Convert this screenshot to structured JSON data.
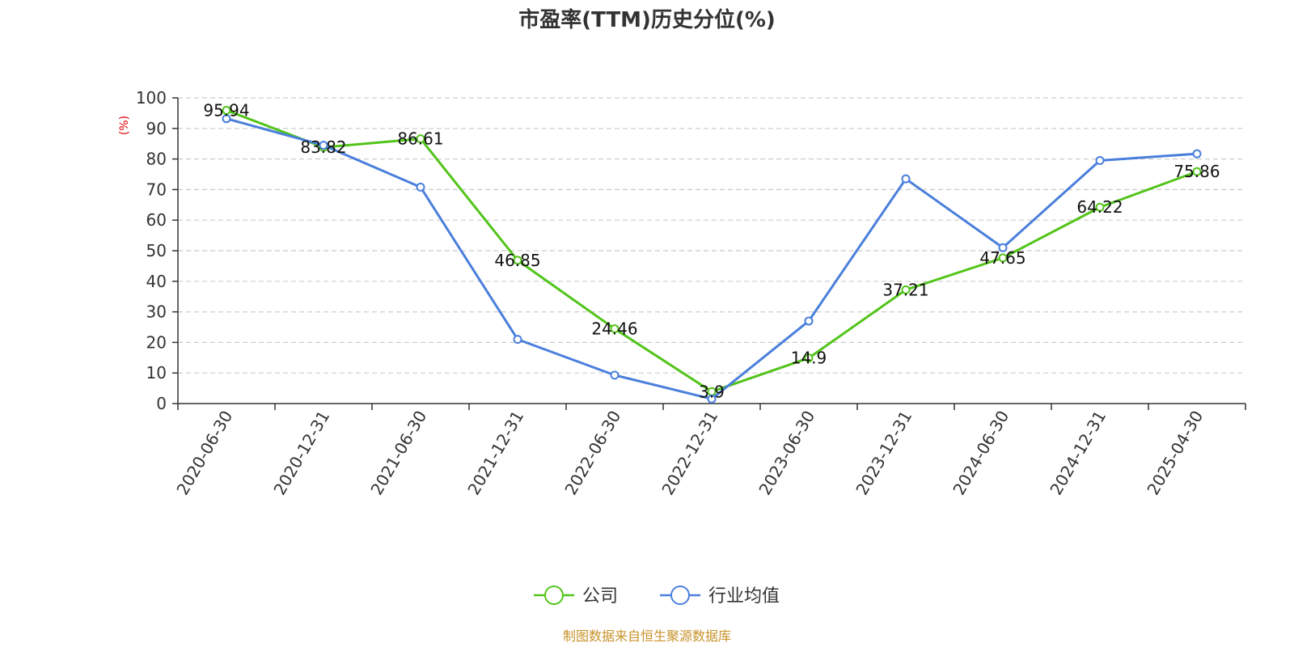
{
  "chart_data": {
    "type": "line",
    "title": "市盈率(TTM)历史分位(%)",
    "ylabel": "(%)",
    "ylim": [
      0,
      100
    ],
    "yticks": [
      "0",
      "10",
      "20",
      "30",
      "40",
      "50",
      "60",
      "70",
      "80",
      "90",
      "100"
    ],
    "categories": [
      "2020-06-30",
      "2020-12-31",
      "2021-06-30",
      "2021-12-31",
      "2022-06-30",
      "2022-12-31",
      "2023-06-30",
      "2023-12-31",
      "2024-06-30",
      "2024-12-31",
      "2025-04-30"
    ],
    "series": [
      {
        "name": "公司",
        "color": "#52c41a",
        "values": [
          95.94,
          83.82,
          86.61,
          46.85,
          24.46,
          3.9,
          14.9,
          37.21,
          47.65,
          64.22,
          75.86
        ],
        "labels": [
          "95.94",
          "83.82",
          "86.61",
          "46.85",
          "24.46",
          "3.9",
          "14.9",
          "37.21",
          "47.65",
          "64.22",
          "75.86"
        ]
      },
      {
        "name": "行业均值",
        "color": "#4a7fdc",
        "values": [
          93.2,
          84.5,
          70.8,
          21.0,
          9.3,
          1.5,
          27.0,
          73.5,
          51.0,
          79.5,
          81.7
        ]
      }
    ],
    "grid": true,
    "legend_position": "bottom"
  },
  "source_text": "制图数据来自恒生聚源数据库",
  "colors": {
    "axis": "#333333",
    "grid": "#cccccc",
    "ylabel": "#e00000",
    "source": "#c8922a"
  }
}
